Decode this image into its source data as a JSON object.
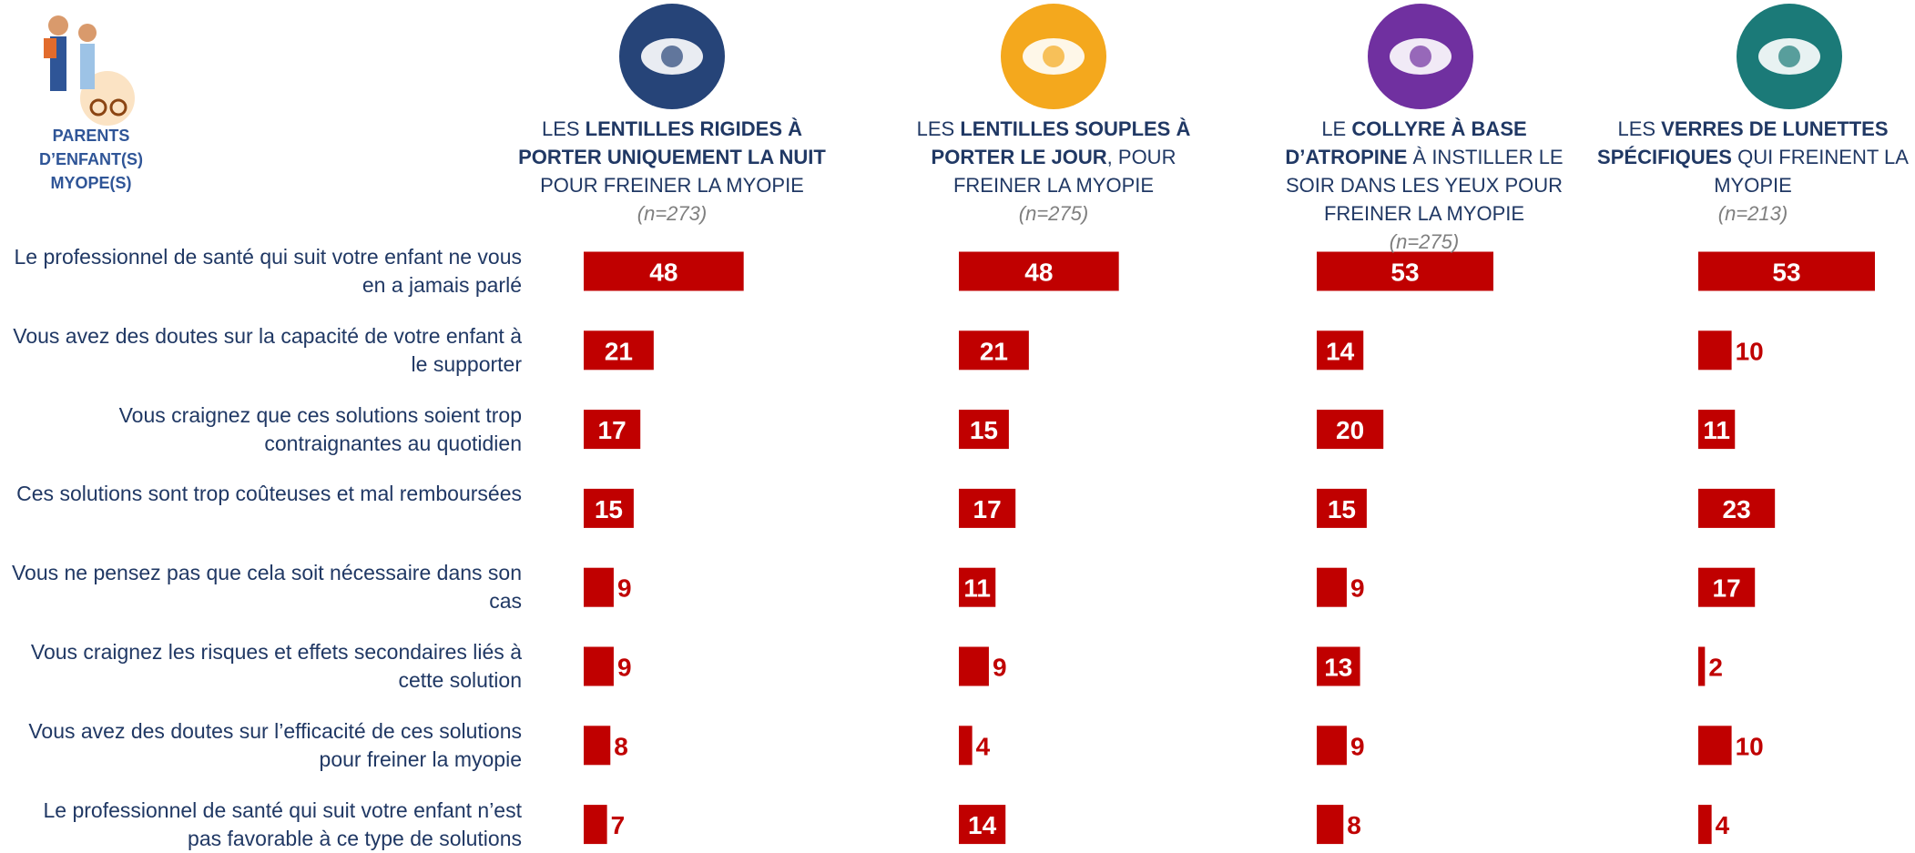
{
  "chart_data": {
    "type": "bar",
    "label": [
      "PARENTS D’ENFANT(S)",
      "MYOPE(S)"
    ],
    "categories": [
      "Le professionnel de santé qui suit votre enfant ne vous en a jamais parlé",
      "Vous avez des doutes sur la capacité de votre enfant à le supporter",
      "Vous craignez que ces solutions soient trop contraignantes au quotidien",
      "Ces solutions sont trop coûteuses et mal remboursées",
      "Vous ne pensez pas que cela soit nécessaire dans son cas",
      "Vous craignez les risques et effets secondaires liés à cette solution",
      "Vous avez des doutes sur l’efficacité de ces solutions pour freiner la myopie",
      "Le professionnel de santé qui suit votre enfant n’est pas favorable à ce type de solutions"
    ],
    "series": [
      {
        "title": [
          {
            "text": "LES ",
            "bold": false
          },
          {
            "text": "LENTILLES RIGIDES À PORTER UNIQUEMENT LA NUIT",
            "bold": true
          },
          {
            "text": " POUR FREINER LA MYOPIE",
            "bold": false
          }
        ],
        "sample": "(n=273)",
        "icon_color": "#264478",
        "color": "#c00000",
        "values": [
          48,
          21,
          17,
          15,
          9,
          9,
          8,
          7
        ]
      },
      {
        "title": [
          {
            "text": "LES ",
            "bold": false
          },
          {
            "text": "LENTILLES SOUPLES À PORTER LE JOUR",
            "bold": true
          },
          {
            "text": ", POUR FREINER LA MYOPIE",
            "bold": false
          }
        ],
        "sample": "(n=275)",
        "icon_color": "#f4a81d",
        "color": "#c00000",
        "values": [
          48,
          21,
          15,
          17,
          11,
          9,
          4,
          14
        ]
      },
      {
        "title": [
          {
            "text": "LE ",
            "bold": false
          },
          {
            "text": "COLLYRE À BASE D’ATROPINE",
            "bold": true
          },
          {
            "text": " À INSTILLER LE SOIR DANS LES YEUX POUR FREINER LA MYOPIE",
            "bold": false
          }
        ],
        "sample": "(n=275)",
        "icon_color": "#7030a0",
        "color": "#c00000",
        "values": [
          53,
          14,
          20,
          15,
          9,
          13,
          9,
          8
        ]
      },
      {
        "title": [
          {
            "text": "LES ",
            "bold": false
          },
          {
            "text": "VERRES DE LUNETTES SPÉCIFIQUES",
            "bold": true
          },
          {
            "text": " QUI FREINENT LA MYOPIE",
            "bold": false
          }
        ],
        "sample": "(n=213)",
        "icon_color": "#1b7a78",
        "color": "#c00000",
        "values": [
          53,
          10,
          11,
          23,
          17,
          2,
          10,
          4
        ]
      }
    ]
  }
}
